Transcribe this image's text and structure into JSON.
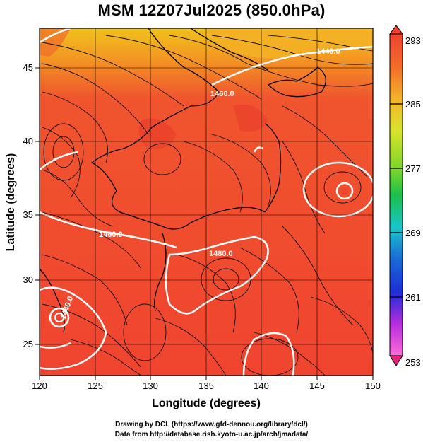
{
  "title": "MSM 12Z07Jul2025 (850.0hPa)",
  "xlabel": "Longitude (degrees)",
  "ylabel": "Latitude  (degrees)",
  "x_ticks": [
    "120",
    "125",
    "130",
    "135",
    "140",
    "145",
    "150"
  ],
  "y_ticks": [
    "25",
    "30",
    "35",
    "40",
    "45"
  ],
  "colorbar": {
    "labels": [
      "293",
      "285",
      "277",
      "269",
      "261",
      "253"
    ],
    "range": [
      253,
      293
    ],
    "colors": [
      "#e4227a",
      "#ff6ad6",
      "#b42de0",
      "#1c2fd6",
      "#1c6ad8",
      "#16c7c8",
      "#1bbf49",
      "#7bd62a",
      "#d8e42a",
      "#f5b12a",
      "#f26a2a",
      "#f0442f"
    ]
  },
  "contours": [
    {
      "label": "1440.0"
    },
    {
      "label": "1460.0"
    },
    {
      "label": "1480.0"
    },
    {
      "label": "1460.0"
    },
    {
      "label": "1440.0"
    }
  ],
  "field_colors": {
    "warm": "#f0442f",
    "hot": "#ee3b2c",
    "cooler": "#f5a020",
    "coolest": "#f0c21c"
  },
  "map": {
    "lon_range": [
      120,
      150
    ],
    "lat_range": [
      22.5,
      48
    ]
  },
  "credits": {
    "line1": "Drawing by DCL (https://www.gfd-dennou.org/library/dcl/)",
    "line2": "Data from http://database.rish.kyoto-u.ac.jp/arch/jmadata/"
  }
}
